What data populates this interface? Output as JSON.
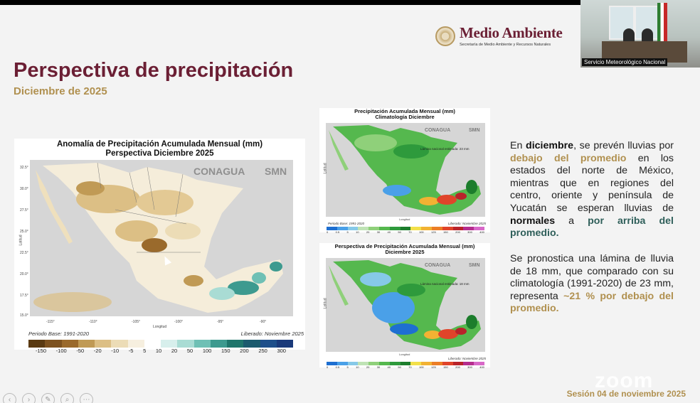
{
  "header": {
    "brand_name": "Medio Ambiente",
    "brand_subtitle": "Secretaría de Medio Ambiente y Recursos Naturales"
  },
  "video": {
    "participant_label": "Servicio Meteorológico Nacional"
  },
  "slide": {
    "title": "Perspectiva de precipitación",
    "subtitle": "Diciembre de 2025",
    "session": "Sesión 04 de noviembre 2025"
  },
  "map_main": {
    "title_line1": "Anomalía de Precipitación Acumulada Mensual (mm)",
    "title_line2": "Perspectiva Diciembre 2025",
    "logo1": "CONAGUA",
    "logo2": "SMN",
    "ylabel": "Latitud",
    "xlabel": "Longitud",
    "lat_ticks": [
      "32.5°",
      "30.0°",
      "27.5°",
      "25.0°",
      "22.5°",
      "20.0°",
      "17.5°",
      "15.0°"
    ],
    "lon_ticks": [
      "-115°",
      "-110°",
      "-105°",
      "-100°",
      "-95°",
      "-90°"
    ],
    "footer_left": "Periodo Base: 1991-2020",
    "footer_right": "Liberado: Noviembre 2025",
    "colorbar_labels": [
      "-150",
      "-100",
      "-50",
      "-20",
      "-10",
      "-5",
      "5",
      "10",
      "20",
      "50",
      "100",
      "150",
      "200",
      "250",
      "300"
    ],
    "colorbar_colors": [
      "#5a3a12",
      "#7d5220",
      "#9a6a2c",
      "#c09a55",
      "#dcbf85",
      "#ecdcb6",
      "#f6efdf",
      "#ffffff",
      "#d7efec",
      "#a9dcd4",
      "#6fc0b5",
      "#3d9a8f",
      "#1f766c",
      "#1b5b6e",
      "#1e4f8a",
      "#1a3a7a"
    ]
  },
  "map_clim": {
    "title_line1": "Precipitación Acumulada Mensual (mm)",
    "title_line2": "Climatología Diciembre",
    "logo1": "CONAGUA",
    "logo2": "SMN",
    "lamina": "Lámina nacional estimada: 23 mm",
    "footer_left": "Periodo Base: 1991-2020",
    "footer_right": "Liberado: Noviembre 2025",
    "xlabel": "Longitud",
    "ylabel": "Latitud",
    "colorbar_labels": [
      "0",
      "0.5",
      "5",
      "10",
      "20",
      "30",
      "40",
      "50",
      "70",
      "100",
      "125",
      "150",
      "200",
      "300",
      "400"
    ]
  },
  "map_persp": {
    "title_line1": "Perspectiva de Precipitación Acumulada Mensual (mm)",
    "title_line2": "Diciembre 2025",
    "logo1": "CONAGUA",
    "logo2": "SMN",
    "lamina": "Lámina nacional estimada: 18 mm",
    "footer_right": "Liberado: Noviembre 2025",
    "xlabel": "Longitud",
    "ylabel": "Latitud",
    "colorbar_labels": [
      "0",
      "0.5",
      "5",
      "10",
      "20",
      "30",
      "40",
      "50",
      "70",
      "100",
      "125",
      "150",
      "200",
      "300",
      "400"
    ]
  },
  "rain_colorbar_colors": [
    "#1e6fd1",
    "#4aa0e8",
    "#86c9e8",
    "#bfe3b5",
    "#8fd07a",
    "#55b84e",
    "#2e9a3c",
    "#1c7d2c",
    "#f3e04a",
    "#f2b233",
    "#ec7e26",
    "#e0442a",
    "#b9232a",
    "#b52d8e",
    "#d868c8"
  ],
  "text": {
    "p1": {
      "a": "En ",
      "b": "diciembre",
      "c": ", se prevén lluvias por ",
      "d": "debajo del promedio",
      "e": " en los estados del norte de México, mientras que en regiones del centro, oriente y península de Yucatán se esperan lluvias de ",
      "f": "normales",
      "g": " a ",
      "h": "por arriba del promedio."
    },
    "p2": {
      "a": "Se pronostica una lámina de lluvia de 18 mm, que comparado con su climatología (1991-2020) de 23 mm, representa ",
      "b": "~21 % por debajo del promedio."
    }
  },
  "zoom_watermark": "zoom"
}
